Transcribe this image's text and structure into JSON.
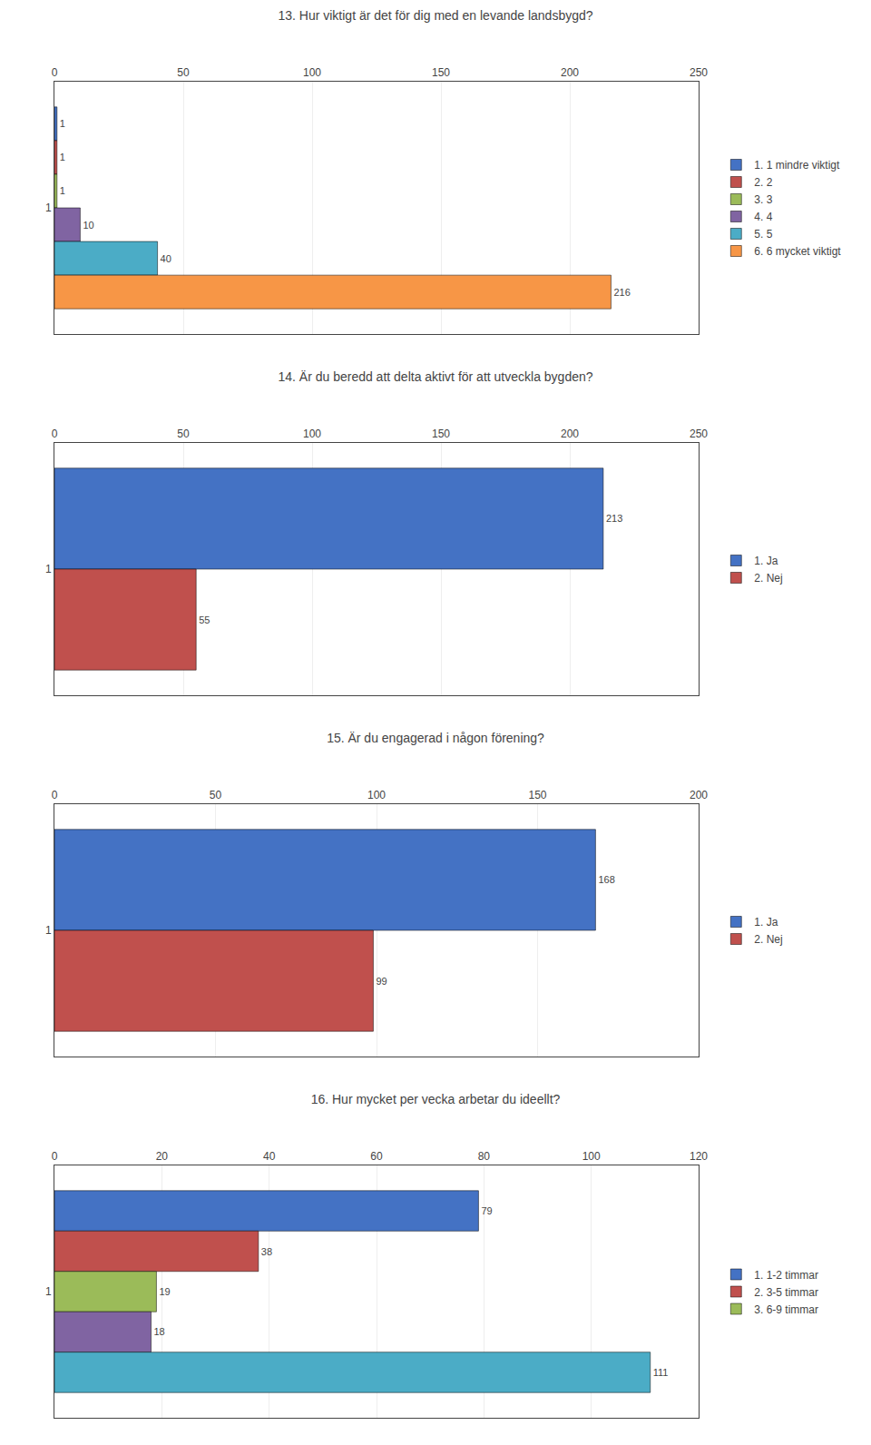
{
  "chart_data": [
    {
      "type": "bar",
      "orientation": "horizontal",
      "title": "13. Hur viktigt är det för dig med en levande landsbygd?",
      "categories": [
        "1"
      ],
      "series": [
        {
          "name": "1. 1 mindre viktigt",
          "color": "#4472c4",
          "values": [
            1
          ]
        },
        {
          "name": "2. 2",
          "color": "#c0504d",
          "values": [
            1
          ]
        },
        {
          "name": "3. 3",
          "color": "#9bbb59",
          "values": [
            1
          ]
        },
        {
          "name": "4. 4",
          "color": "#8064a2",
          "values": [
            10
          ]
        },
        {
          "name": "5. 5",
          "color": "#4bacc6",
          "values": [
            40
          ]
        },
        {
          "name": "6. 6 mycket viktigt",
          "color": "#f79646",
          "values": [
            216
          ]
        }
      ],
      "xlim": [
        0,
        250
      ],
      "xticks": [
        0,
        50,
        100,
        150,
        200,
        250
      ],
      "grid": true,
      "data_labels": true
    },
    {
      "type": "bar",
      "orientation": "horizontal",
      "title": "14. Är du beredd att delta aktivt för att utveckla bygden?",
      "categories": [
        "1"
      ],
      "series": [
        {
          "name": "1. Ja",
          "color": "#4472c4",
          "values": [
            213
          ]
        },
        {
          "name": "2. Nej",
          "color": "#c0504d",
          "values": [
            55
          ]
        }
      ],
      "xlim": [
        0,
        250
      ],
      "xticks": [
        0,
        50,
        100,
        150,
        200,
        250
      ],
      "grid": true,
      "data_labels": true
    },
    {
      "type": "bar",
      "orientation": "horizontal",
      "title": "15. Är du engagerad i någon förening?",
      "categories": [
        "1"
      ],
      "series": [
        {
          "name": "1. Ja",
          "color": "#4472c4",
          "values": [
            168
          ]
        },
        {
          "name": "2. Nej",
          "color": "#c0504d",
          "values": [
            99
          ]
        }
      ],
      "xlim": [
        0,
        200
      ],
      "xticks": [
        0,
        50,
        100,
        150,
        200
      ],
      "grid": true,
      "data_labels": true
    },
    {
      "type": "bar",
      "orientation": "horizontal",
      "title": "16. Hur mycket per vecka arbetar du ideellt?",
      "categories": [
        "1"
      ],
      "series": [
        {
          "name": "1. 1-2 timmar",
          "color": "#4472c4",
          "values": [
            79
          ]
        },
        {
          "name": "2. 3-5 timmar",
          "color": "#c0504d",
          "values": [
            38
          ]
        },
        {
          "name": "3. 6-9 timmar",
          "color": "#9bbb59",
          "values": [
            19
          ]
        },
        {
          "color": "#8064a2",
          "values": [
            18
          ]
        },
        {
          "color": "#4bacc6",
          "values": [
            111
          ]
        }
      ],
      "xlim": [
        0,
        120
      ],
      "xticks": [
        0,
        20,
        40,
        60,
        80,
        100,
        120
      ],
      "grid": true,
      "data_labels": true
    }
  ]
}
